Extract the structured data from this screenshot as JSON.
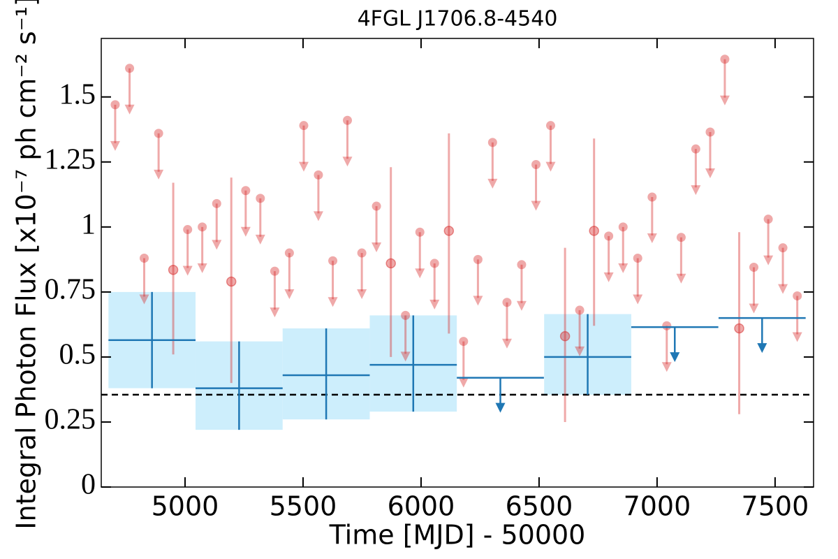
{
  "chart_data": {
    "type": "scatter",
    "title": "4FGL J1706.8-4540",
    "xlabel": "Time [MJD] - 50000",
    "ylabel": "Integral Photon Flux [x10⁻⁷ ph cm⁻² s⁻¹]",
    "xlim": [
      4645,
      7663
    ],
    "ylim": [
      0,
      1.725
    ],
    "xticks": [
      5000,
      5500,
      6000,
      6500,
      7000,
      7500
    ],
    "yticks": [
      0,
      0.25,
      0.5,
      0.75,
      1,
      1.25,
      1.5
    ],
    "hline": 0.355,
    "monthly": {
      "color": "#d62728",
      "x": [
        4704,
        4765,
        4827,
        4888,
        4950,
        5011,
        5073,
        5134,
        5196,
        5257,
        5319,
        5380,
        5442,
        5503,
        5565,
        5626,
        5688,
        5749,
        5811,
        5872,
        5934,
        5995,
        6057,
        6118,
        6180,
        6241,
        6303,
        6364,
        6426,
        6487,
        6549,
        6610,
        6672,
        6733,
        6795,
        6856,
        6918,
        6979,
        7041,
        7102,
        7164,
        7225,
        7287,
        7348,
        7410,
        7471,
        7533,
        7594
      ],
      "values": [
        1.47,
        1.61,
        0.88,
        1.36,
        0.835,
        0.99,
        1.0,
        1.09,
        0.79,
        1.14,
        1.11,
        0.83,
        0.9,
        1.39,
        1.2,
        0.87,
        1.41,
        0.9,
        1.08,
        0.86,
        0.66,
        0.98,
        0.86,
        0.985,
        0.56,
        0.875,
        1.325,
        0.71,
        0.855,
        1.24,
        1.39,
        0.58,
        0.68,
        0.985,
        0.965,
        1.0,
        0.88,
        1.115,
        0.62,
        0.96,
        1.3,
        1.365,
        1.645,
        0.61,
        0.845,
        1.03,
        0.92,
        0.735
      ],
      "upper_limit": [
        true,
        true,
        true,
        true,
        false,
        true,
        true,
        true,
        false,
        true,
        true,
        true,
        true,
        true,
        true,
        true,
        true,
        true,
        true,
        false,
        true,
        true,
        true,
        false,
        true,
        true,
        true,
        true,
        true,
        true,
        true,
        false,
        true,
        false,
        true,
        true,
        true,
        true,
        true,
        true,
        true,
        true,
        true,
        false,
        true,
        true,
        true,
        true
      ],
      "err_low": [
        null,
        null,
        null,
        null,
        0.51,
        null,
        null,
        null,
        0.4,
        null,
        null,
        null,
        null,
        null,
        null,
        null,
        null,
        null,
        null,
        0.5,
        null,
        null,
        null,
        0.59,
        null,
        null,
        null,
        null,
        null,
        null,
        null,
        0.25,
        null,
        0.62,
        null,
        null,
        null,
        null,
        null,
        null,
        null,
        null,
        null,
        0.28,
        null,
        null,
        null,
        null
      ],
      "err_high": [
        null,
        null,
        null,
        null,
        1.17,
        null,
        null,
        null,
        1.19,
        null,
        null,
        null,
        null,
        null,
        null,
        null,
        null,
        null,
        null,
        1.23,
        null,
        null,
        null,
        1.36,
        null,
        null,
        null,
        null,
        null,
        null,
        null,
        0.92,
        null,
        1.34,
        null,
        null,
        null,
        null,
        null,
        null,
        null,
        null,
        null,
        0.98,
        null,
        null,
        null,
        null
      ]
    },
    "yearly": {
      "color": "#1f77b4",
      "box_color": "#cdeefc",
      "x": [
        4860,
        5229,
        5598,
        5967,
        6336,
        6706,
        7075,
        7445
      ],
      "xerr": [
        184.5,
        184.5,
        184.5,
        184.5,
        184.5,
        184.5,
        184.5,
        184.5
      ],
      "values": [
        0.565,
        0.38,
        0.43,
        0.47,
        0.42,
        0.5,
        0.615,
        0.65
      ],
      "upper_limit": [
        false,
        false,
        false,
        false,
        true,
        false,
        true,
        true
      ],
      "err_low": [
        0.38,
        0.22,
        0.26,
        0.29,
        null,
        0.355,
        null,
        null
      ],
      "err_high": [
        0.75,
        0.56,
        0.61,
        0.66,
        null,
        0.665,
        null,
        null
      ]
    }
  }
}
